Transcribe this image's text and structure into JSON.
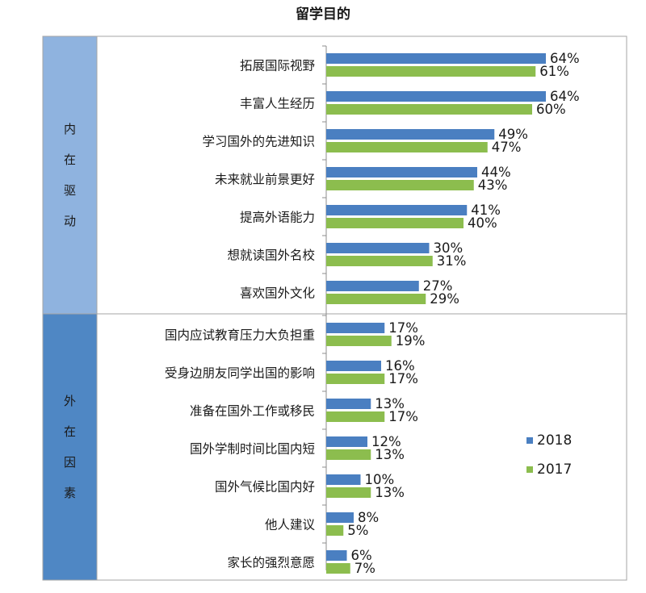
{
  "chart_data": {
    "type": "bar",
    "orientation": "horizontal",
    "title": "留学目的",
    "xlim": [
      0,
      100
    ],
    "value_suffix": "%",
    "grid": false,
    "legend_position": "right",
    "groups": [
      {
        "label": "内在驱动",
        "categories": [
          "拓展国际视野",
          "丰富人生经历",
          "学习国外的先进知识",
          "未来就业前景更好",
          "提高外语能力",
          "想就读国外名校",
          "喜欢国外文化"
        ]
      },
      {
        "label": "外在因素",
        "categories": [
          "国内应试教育压力大负担重",
          "受身边朋友同学出国的影响",
          "准备在国外工作或移民",
          "国外学制时间比国内短",
          "国外气候比国内好",
          "他人建议",
          "家长的强烈意愿"
        ]
      }
    ],
    "categories": [
      "拓展国际视野",
      "丰富人生经历",
      "学习国外的先进知识",
      "未来就业前景更好",
      "提高外语能力",
      "想就读国外名校",
      "喜欢国外文化",
      "国内应试教育压力大负担重",
      "受身边朋友同学出国的影响",
      "准备在国外工作或移民",
      "国外学制时间比国内短",
      "国外气候比国内好",
      "他人建议",
      "家长的强烈意愿"
    ],
    "series": [
      {
        "name": "2018",
        "color": "#4a7fc1",
        "values": [
          64,
          64,
          49,
          44,
          41,
          30,
          27,
          17,
          16,
          13,
          12,
          10,
          8,
          6
        ]
      },
      {
        "name": "2017",
        "color": "#8cbd4e",
        "values": [
          61,
          60,
          47,
          43,
          40,
          31,
          29,
          19,
          17,
          17,
          13,
          13,
          5,
          7
        ]
      }
    ]
  },
  "colors": {
    "group_band_1": "#8fb3df",
    "group_band_2": "#4f87c4",
    "border": "#a6a6a6"
  }
}
